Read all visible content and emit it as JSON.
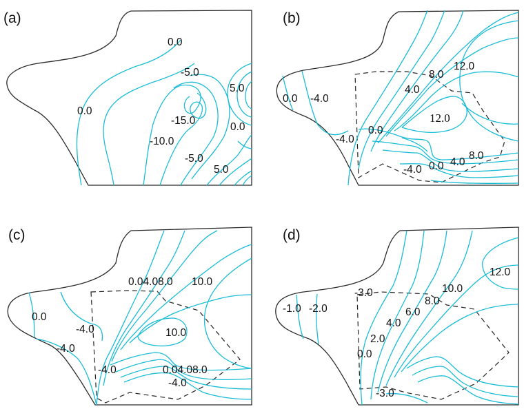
{
  "panels": [
    {
      "letter": "(a)",
      "labels": [
        "0.0",
        "-5.0",
        "5.0",
        "0.0",
        "-15.0",
        "0.0",
        "-10.0",
        "-5.0",
        "5.0"
      ]
    },
    {
      "letter": "(b)",
      "labels": [
        "12.0",
        "8.0",
        "4.0",
        "0.0",
        "-4.0",
        "12.0",
        "-4.0",
        "0.0",
        "8.0",
        "4.0",
        "0.0",
        "-4.0"
      ]
    },
    {
      "letter": "(c)",
      "labels": [
        "0.04.08.0",
        "10.0",
        "0.0",
        "-4.0",
        "-4.0",
        "10.0",
        "-4.0",
        "0.04.08.0",
        "-4.0"
      ]
    },
    {
      "letter": "(d)",
      "labels": [
        "12.0",
        "-3.0",
        "10.0",
        "8.0",
        "-1.0",
        "-2.0",
        "6.0",
        "4.0",
        "2.0",
        "0.0",
        "-3.0"
      ]
    }
  ],
  "colors": {
    "contour": "#19bcd6",
    "boundary": "#2a2a2a",
    "dashed_region": "#222222"
  }
}
